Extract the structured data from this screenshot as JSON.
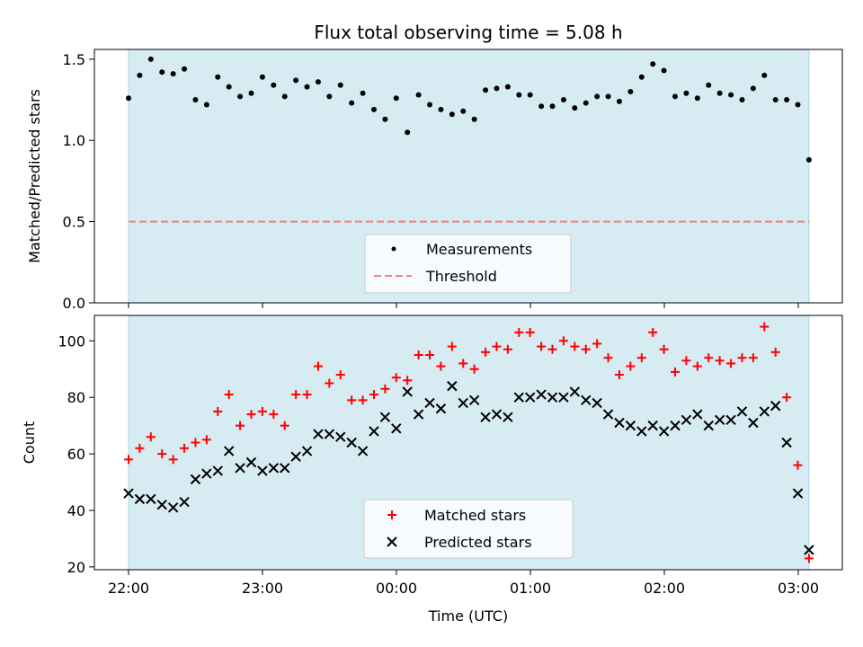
{
  "chart_data": [
    {
      "type": "scatter",
      "title": "Flux total observing time = 5.08 h",
      "xlabel": "",
      "ylabel": "Matched/Predicted stars",
      "ylim": [
        0,
        1.56
      ],
      "yticks": [
        {
          "value": 0.0,
          "label": "0.0"
        },
        {
          "value": 0.5,
          "label": "0.5"
        },
        {
          "value": 1.0,
          "label": "1.0"
        },
        {
          "value": 1.5,
          "label": "1.5"
        }
      ],
      "shaded_span_hours": [
        0,
        5.08
      ],
      "shade_color": "#add8e6",
      "series": [
        {
          "name": "Measurements",
          "marker": "dot",
          "color": "#000000",
          "values": [
            1.26,
            1.4,
            1.5,
            1.42,
            1.41,
            1.44,
            1.25,
            1.22,
            1.39,
            1.33,
            1.27,
            1.29,
            1.39,
            1.34,
            1.27,
            1.37,
            1.33,
            1.36,
            1.27,
            1.34,
            1.23,
            1.29,
            1.19,
            1.13,
            1.26,
            1.05,
            1.28,
            1.22,
            1.19,
            1.16,
            1.18,
            1.13,
            1.31,
            1.32,
            1.33,
            1.28,
            1.28,
            1.21,
            1.21,
            1.25,
            1.2,
            1.23,
            1.27,
            1.27,
            1.24,
            1.3,
            1.39,
            1.47,
            1.43,
            1.27,
            1.29,
            1.26,
            1.34,
            1.29,
            1.28,
            1.25,
            1.32,
            1.4,
            1.25,
            1.25,
            1.22,
            0.88
          ]
        },
        {
          "name": "Threshold",
          "marker": "dashed-line",
          "color": "#f08080",
          "value": 0.5
        }
      ],
      "legend": "lower-center"
    },
    {
      "type": "scatter",
      "title": "",
      "xlabel": "Time (UTC)",
      "ylabel": "Count",
      "ylim": [
        19,
        109
      ],
      "yticks": [
        {
          "value": 20,
          "label": "20"
        },
        {
          "value": 40,
          "label": "40"
        },
        {
          "value": 60,
          "label": "60"
        },
        {
          "value": 80,
          "label": "80"
        },
        {
          "value": 100,
          "label": "100"
        }
      ],
      "xticks": [
        {
          "value": 0,
          "label": "22:00"
        },
        {
          "value": 1,
          "label": "23:00"
        },
        {
          "value": 2,
          "label": "00:00"
        },
        {
          "value": 3,
          "label": "01:00"
        },
        {
          "value": 4,
          "label": "02:00"
        },
        {
          "value": 5,
          "label": "03:00"
        }
      ],
      "shaded_span_hours": [
        0,
        5.08
      ],
      "shade_color": "#add8e6",
      "series": [
        {
          "name": "Matched stars",
          "marker": "plus",
          "color": "#ff0000",
          "values": [
            58,
            62,
            66,
            60,
            58,
            62,
            64,
            65,
            75,
            81,
            70,
            74,
            75,
            74,
            70,
            81,
            81,
            91,
            85,
            88,
            79,
            79,
            81,
            83,
            87,
            86,
            95,
            95,
            91,
            98,
            92,
            90,
            96,
            98,
            97,
            103,
            103,
            98,
            97,
            100,
            98,
            97,
            99,
            94,
            88,
            91,
            94,
            103,
            97,
            89,
            93,
            91,
            94,
            93,
            92,
            94,
            94,
            105,
            96,
            80,
            56,
            23
          ]
        },
        {
          "name": "Predicted stars",
          "marker": "x",
          "color": "#000000",
          "values": [
            46,
            44,
            44,
            42,
            41,
            43,
            51,
            53,
            54,
            61,
            55,
            57,
            54,
            55,
            55,
            59,
            61,
            67,
            67,
            66,
            64,
            61,
            68,
            73,
            69,
            82,
            74,
            78,
            76,
            84,
            78,
            79,
            73,
            74,
            73,
            80,
            80,
            81,
            80,
            80,
            82,
            79,
            78,
            74,
            71,
            70,
            68,
            70,
            68,
            70,
            72,
            74,
            70,
            72,
            72,
            75,
            71,
            75,
            77,
            64,
            46,
            26
          ]
        }
      ],
      "legend": "lower-center"
    }
  ]
}
